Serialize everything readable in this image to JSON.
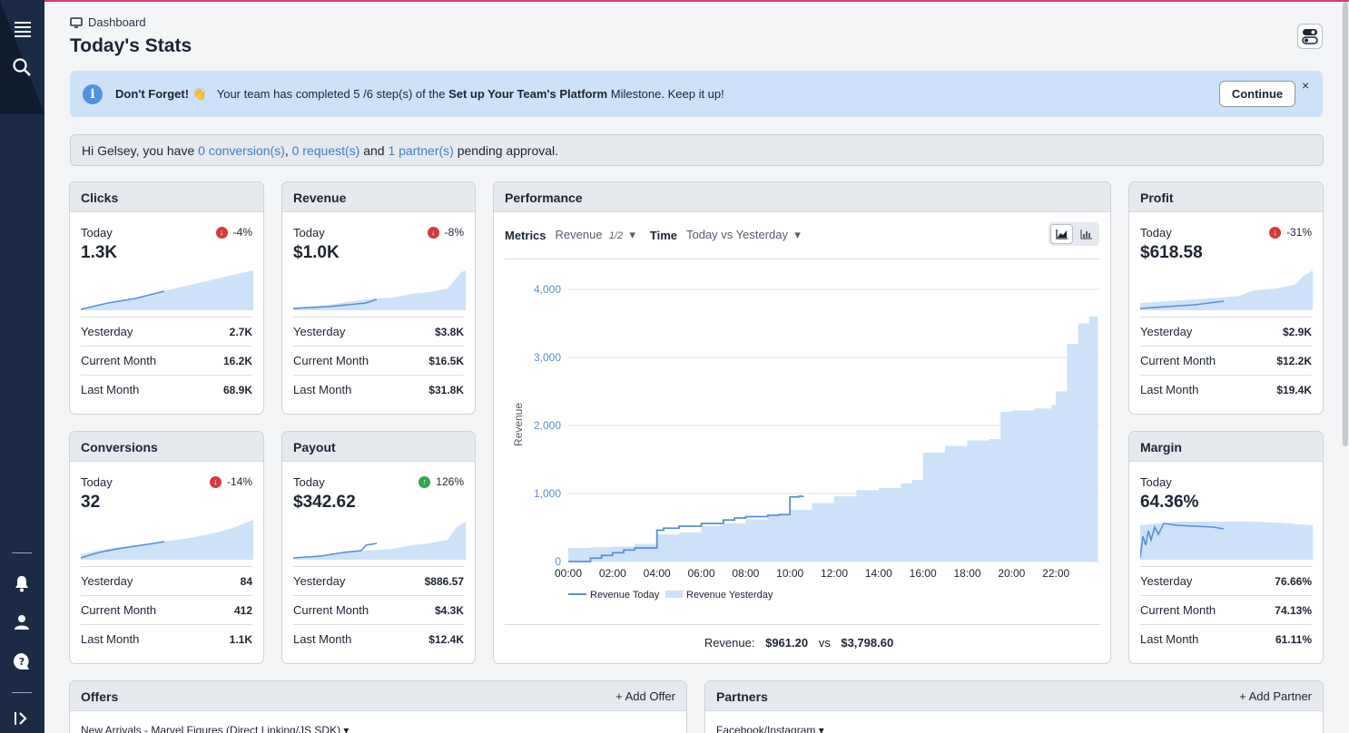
{
  "nav": {
    "menu_icon": "menu-icon",
    "search_icon": "search-icon",
    "bell_icon": "bell-icon",
    "user_icon": "user-icon",
    "help_icon": "help-icon",
    "expand_icon": "expand-icon"
  },
  "breadcrumb": "Dashboard",
  "page_title": "Today's Stats",
  "banner": {
    "strong": "Don't Forget!",
    "emoji": "👋",
    "text_pre": "Your team has completed 5 /6 step(s) of the",
    "milestone": "Set up Your Team's Platform",
    "text_post": "Milestone. Keep it up!",
    "continue_label": "Continue",
    "close": "×"
  },
  "pending": {
    "pre": "Hi Gelsey, you have",
    "conversions": "0 conversion(s)",
    "comma": ",",
    "requests": "0 request(s)",
    "and": "and",
    "partners": "1 partner(s)",
    "post": "pending approval."
  },
  "stats": {
    "clicks": {
      "title": "Clicks",
      "today_label": "Today",
      "delta": "-4%",
      "direction": "down",
      "value": "1.3K",
      "rows": [
        {
          "label": "Yesterday",
          "value": "2.7K"
        },
        {
          "label": "Current Month",
          "value": "16.2K"
        },
        {
          "label": "Last Month",
          "value": "68.9K"
        }
      ]
    },
    "revenue": {
      "title": "Revenue",
      "today_label": "Today",
      "delta": "-8%",
      "direction": "down",
      "value": "$1.0K",
      "rows": [
        {
          "label": "Yesterday",
          "value": "$3.8K"
        },
        {
          "label": "Current Month",
          "value": "$16.5K"
        },
        {
          "label": "Last Month",
          "value": "$31.8K"
        }
      ]
    },
    "profit": {
      "title": "Profit",
      "today_label": "Today",
      "delta": "-31%",
      "direction": "down",
      "value": "$618.58",
      "rows": [
        {
          "label": "Yesterday",
          "value": "$2.9K"
        },
        {
          "label": "Current Month",
          "value": "$12.2K"
        },
        {
          "label": "Last Month",
          "value": "$19.4K"
        }
      ]
    },
    "conversions": {
      "title": "Conversions",
      "today_label": "Today",
      "delta": "-14%",
      "direction": "down",
      "value": "32",
      "rows": [
        {
          "label": "Yesterday",
          "value": "84"
        },
        {
          "label": "Current Month",
          "value": "412"
        },
        {
          "label": "Last Month",
          "value": "1.1K"
        }
      ]
    },
    "payout": {
      "title": "Payout",
      "today_label": "Today",
      "delta": "126%",
      "direction": "up",
      "value": "$342.62",
      "rows": [
        {
          "label": "Yesterday",
          "value": "$886.57"
        },
        {
          "label": "Current Month",
          "value": "$4.3K"
        },
        {
          "label": "Last Month",
          "value": "$12.4K"
        }
      ]
    },
    "margin": {
      "title": "Margin",
      "today_label": "Today",
      "value": "64.36%",
      "rows": [
        {
          "label": "Yesterday",
          "value": "76.66%"
        },
        {
          "label": "Current Month",
          "value": "74.13%"
        },
        {
          "label": "Last Month",
          "value": "61.11%"
        }
      ]
    }
  },
  "performance": {
    "title": "Performance",
    "metrics_label": "Metrics",
    "metrics_value": "Revenue",
    "metrics_page": "1/2",
    "time_label": "Time",
    "time_value": "Today vs Yesterday",
    "summary_label": "Revenue:",
    "summary_today": "$961.20",
    "summary_vs": "vs",
    "summary_yesterday": "$3,798.60"
  },
  "chart_data": {
    "type": "area",
    "ylabel": "Revenue",
    "ylim": [
      0,
      4000
    ],
    "yticks": [
      "0",
      "1,000",
      "2,000",
      "3,000",
      "4,000"
    ],
    "xticks": [
      "00:00",
      "02:00",
      "04:00",
      "06:00",
      "08:00",
      "10:00",
      "12:00",
      "14:00",
      "16:00",
      "18:00",
      "20:00",
      "22:00"
    ],
    "legend_position": "bottom",
    "series": [
      {
        "name": "Revenue Today",
        "kind": "line",
        "color": "#5b8fd0",
        "x": [
          0,
          1,
          1.5,
          2,
          2.5,
          3,
          4,
          4.3,
          5,
          6,
          7,
          7.5,
          8,
          9,
          9.5,
          10,
          10.4,
          10.6
        ],
        "y": [
          0,
          50,
          90,
          130,
          170,
          200,
          460,
          490,
          520,
          560,
          610,
          640,
          660,
          680,
          690,
          950,
          960,
          961
        ]
      },
      {
        "name": "Revenue Yesterday",
        "kind": "area",
        "color": "#cde2f8",
        "x": [
          0,
          1,
          2,
          3,
          4,
          5,
          6,
          7,
          8,
          9,
          10,
          11,
          12,
          13,
          14,
          15,
          15.5,
          16,
          17,
          18,
          19,
          19.5,
          20,
          21,
          21.8,
          22,
          22.5,
          23,
          23.5,
          23.9
        ],
        "y": [
          200,
          210,
          220,
          260,
          400,
          430,
          520,
          560,
          620,
          680,
          760,
          860,
          960,
          1050,
          1080,
          1150,
          1200,
          1600,
          1700,
          1780,
          1800,
          2200,
          2220,
          2250,
          2300,
          2500,
          3200,
          3500,
          3600,
          3800
        ]
      }
    ]
  },
  "offers": {
    "title": "Offers",
    "add_label": "Add Offer",
    "first_item": "New Arrivals - Marvel Figures (Direct Linking/JS SDK)"
  },
  "partners": {
    "title": "Partners",
    "add_label": "Add Partner",
    "first_item": "Facebook/Instagram"
  }
}
